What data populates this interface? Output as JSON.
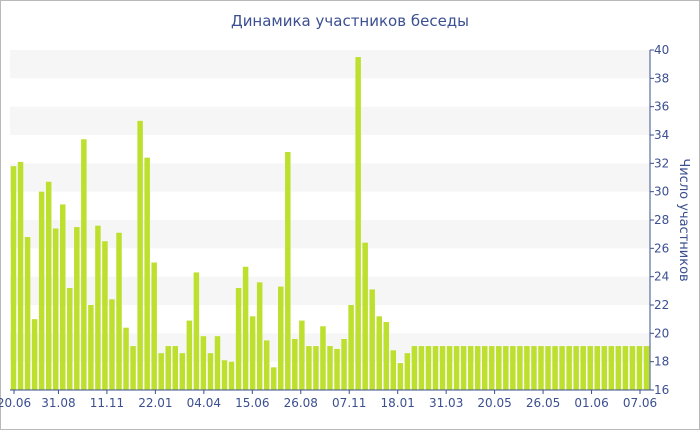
{
  "chart_data": {
    "type": "bar",
    "title": "Динамика участников беседы",
    "xlabel": "",
    "ylabel": "Число участников",
    "ylim": [
      16,
      40
    ],
    "yticks": [
      16,
      18,
      20,
      22,
      24,
      26,
      28,
      30,
      32,
      34,
      36,
      38,
      40
    ],
    "x_tick_labels": [
      "20.06",
      "31.08",
      "11.11",
      "22.01",
      "04.04",
      "15.06",
      "26.08",
      "07.11",
      "18.01",
      "31.03",
      "20.05",
      "26.05",
      "01.06",
      "07.06"
    ],
    "grid": "alternating horizontal bands",
    "bar_color": "#bddf2e",
    "values": [
      31.8,
      32.1,
      26.8,
      21.0,
      30.0,
      30.7,
      27.4,
      29.1,
      23.2,
      27.5,
      33.7,
      22.0,
      27.6,
      26.5,
      22.4,
      27.1,
      20.4,
      19.1,
      35.0,
      32.4,
      25.0,
      18.6,
      19.1,
      19.1,
      18.6,
      20.9,
      24.3,
      19.8,
      18.6,
      19.8,
      18.1,
      18.0,
      23.2,
      24.7,
      21.2,
      23.6,
      19.5,
      17.6,
      23.3,
      32.8,
      19.6,
      20.9,
      19.1,
      19.1,
      20.5,
      19.1,
      18.9,
      19.6,
      22.0,
      39.5,
      26.4,
      23.1,
      21.2,
      20.8,
      18.8,
      17.9,
      18.6,
      19.1,
      19.1,
      19.1,
      19.1,
      19.1,
      19.1,
      19.1,
      19.1,
      19.1,
      19.1,
      19.1,
      19.1,
      19.1,
      19.1,
      19.1,
      19.1,
      19.1,
      19.1,
      19.1,
      19.1,
      19.1,
      19.1,
      19.1,
      19.1,
      19.1,
      19.1,
      19.1,
      19.1,
      19.1,
      19.1,
      19.1,
      19.1,
      19.1,
      19.1
    ]
  }
}
